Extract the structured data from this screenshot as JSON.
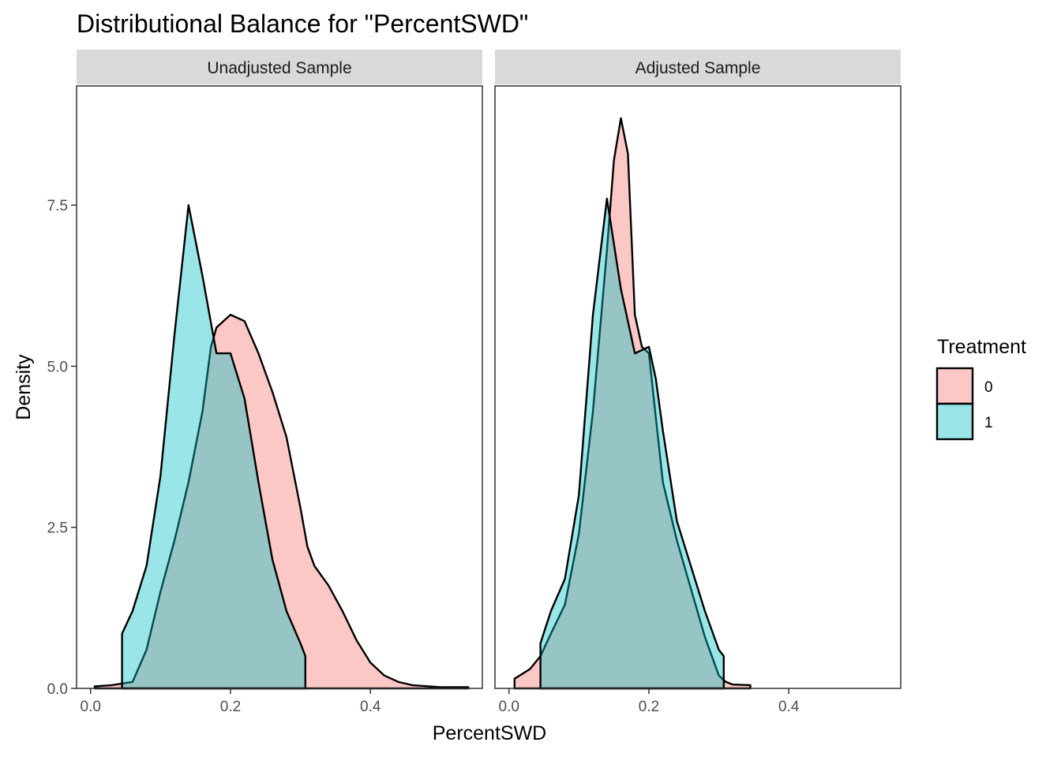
{
  "chart_data": {
    "type": "area",
    "title": "Distributional Balance for \"PercentSWD\"",
    "xlabel": "PercentSWD",
    "ylabel": "Density",
    "xlim": [
      -0.02,
      0.56
    ],
    "ylim": [
      0,
      9.35
    ],
    "x_ticks": [
      0.0,
      0.2,
      0.4
    ],
    "x_tick_labels": [
      "0.0",
      "0.2",
      "0.4"
    ],
    "y_ticks": [
      0,
      2.5,
      5.0,
      7.5
    ],
    "y_tick_labels": [
      "0.0",
      "2.5",
      "5.0",
      "7.5"
    ],
    "grid": false,
    "legend": {
      "title": "Treatment",
      "position": "right",
      "entries": [
        {
          "label": "0",
          "color": "#f8766d"
        },
        {
          "label": "1",
          "color": "#00bfc4"
        }
      ]
    },
    "panels": [
      {
        "label": "Unadjusted Sample",
        "series": [
          {
            "name": "0",
            "color": "#f8766d",
            "points": [
              [
                0.006,
                0.03
              ],
              [
                0.03,
                0.05
              ],
              [
                0.06,
                0.1
              ],
              [
                0.08,
                0.6
              ],
              [
                0.1,
                1.5
              ],
              [
                0.12,
                2.3
              ],
              [
                0.14,
                3.2
              ],
              [
                0.16,
                4.3
              ],
              [
                0.172,
                5.3
              ],
              [
                0.18,
                5.6
              ],
              [
                0.2,
                5.8
              ],
              [
                0.22,
                5.7
              ],
              [
                0.24,
                5.2
              ],
              [
                0.26,
                4.6
              ],
              [
                0.28,
                3.9
              ],
              [
                0.3,
                2.8
              ],
              [
                0.31,
                2.2
              ],
              [
                0.32,
                1.9
              ],
              [
                0.34,
                1.6
              ],
              [
                0.36,
                1.2
              ],
              [
                0.38,
                0.75
              ],
              [
                0.4,
                0.4
              ],
              [
                0.42,
                0.2
              ],
              [
                0.44,
                0.1
              ],
              [
                0.46,
                0.05
              ],
              [
                0.5,
                0.02
              ],
              [
                0.54,
                0.02
              ]
            ]
          },
          {
            "name": "1",
            "color": "#00bfc4",
            "points": [
              [
                0.045,
                0.85
              ],
              [
                0.045,
                0.85
              ],
              [
                0.06,
                1.2
              ],
              [
                0.08,
                1.9
              ],
              [
                0.1,
                3.3
              ],
              [
                0.12,
                5.5
              ],
              [
                0.14,
                7.5
              ],
              [
                0.16,
                6.4
              ],
              [
                0.18,
                5.2
              ],
              [
                0.2,
                5.2
              ],
              [
                0.22,
                4.5
              ],
              [
                0.24,
                3.2
              ],
              [
                0.26,
                2.0
              ],
              [
                0.28,
                1.2
              ],
              [
                0.3,
                0.7
              ],
              [
                0.307,
                0.5
              ]
            ]
          }
        ]
      },
      {
        "label": "Adjusted Sample",
        "series": [
          {
            "name": "0",
            "color": "#f8766d",
            "points": [
              [
                0.008,
                0.15
              ],
              [
                0.03,
                0.3
              ],
              [
                0.045,
                0.5
              ],
              [
                0.06,
                0.85
              ],
              [
                0.08,
                1.3
              ],
              [
                0.1,
                2.4
              ],
              [
                0.12,
                4.3
              ],
              [
                0.14,
                6.8
              ],
              [
                0.15,
                8.2
              ],
              [
                0.16,
                8.85
              ],
              [
                0.17,
                8.3
              ],
              [
                0.18,
                5.8
              ],
              [
                0.19,
                5.3
              ],
              [
                0.2,
                5.2
              ],
              [
                0.21,
                4.2
              ],
              [
                0.22,
                3.2
              ],
              [
                0.24,
                2.3
              ],
              [
                0.26,
                1.55
              ],
              [
                0.28,
                0.8
              ],
              [
                0.3,
                0.2
              ],
              [
                0.31,
                0.1
              ],
              [
                0.32,
                0.06
              ],
              [
                0.345,
                0.05
              ]
            ]
          },
          {
            "name": "1",
            "color": "#00bfc4",
            "points": [
              [
                0.045,
                0.7
              ],
              [
                0.045,
                0.7
              ],
              [
                0.06,
                1.2
              ],
              [
                0.08,
                1.7
              ],
              [
                0.1,
                3.0
              ],
              [
                0.12,
                5.8
              ],
              [
                0.14,
                7.6
              ],
              [
                0.16,
                6.2
              ],
              [
                0.18,
                5.2
              ],
              [
                0.2,
                5.3
              ],
              [
                0.21,
                4.8
              ],
              [
                0.22,
                4.0
              ],
              [
                0.24,
                2.6
              ],
              [
                0.26,
                1.9
              ],
              [
                0.28,
                1.2
              ],
              [
                0.3,
                0.6
              ],
              [
                0.307,
                0.5
              ]
            ]
          }
        ]
      }
    ]
  }
}
